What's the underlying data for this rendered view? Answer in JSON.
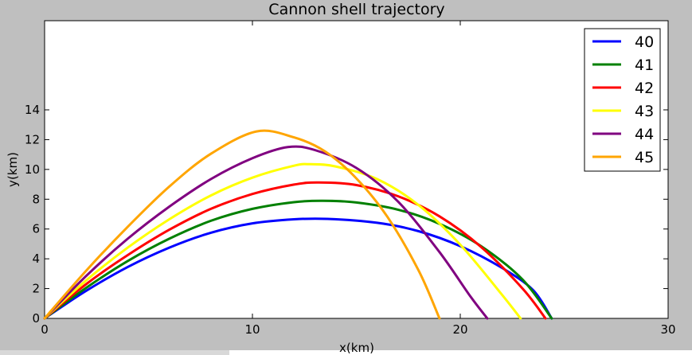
{
  "chart_data": {
    "type": "line",
    "title": "Cannon shell trajectory",
    "xlabel": "x(km)",
    "ylabel": "y(km)",
    "xlim": [
      0,
      30
    ],
    "ylim": [
      0,
      14
    ],
    "xticks": [
      0,
      10,
      20,
      30
    ],
    "yticks": [
      0,
      2,
      4,
      6,
      8,
      10,
      12,
      14
    ],
    "legend_position": "top-right",
    "grid": false,
    "series": [
      {
        "name": "40",
        "color": "#0000ff",
        "x": [
          0,
          2,
          4,
          6,
          8,
          10,
          12,
          13.6,
          16,
          18,
          20,
          22,
          23.5,
          24.4
        ],
        "y": [
          0,
          1.85,
          3.45,
          4.75,
          5.75,
          6.38,
          6.65,
          6.68,
          6.42,
          5.85,
          4.85,
          3.4,
          1.9,
          0
        ]
      },
      {
        "name": "41",
        "color": "#008000",
        "x": [
          0,
          2,
          4,
          6,
          8,
          10,
          12,
          13.4,
          15,
          17,
          19,
          21,
          23,
          24.4
        ],
        "y": [
          0,
          2.05,
          3.85,
          5.35,
          6.55,
          7.35,
          7.8,
          7.9,
          7.78,
          7.3,
          6.35,
          4.85,
          2.6,
          0
        ]
      },
      {
        "name": "42",
        "color": "#ff0000",
        "x": [
          0,
          2,
          4,
          6,
          8,
          10,
          12,
          13.2,
          15,
          17,
          19,
          21,
          23,
          24.1
        ],
        "y": [
          0,
          2.3,
          4.25,
          5.95,
          7.35,
          8.35,
          8.98,
          9.12,
          8.95,
          8.2,
          6.85,
          4.8,
          2.0,
          0
        ]
      },
      {
        "name": "43",
        "color": "#ffff00",
        "x": [
          0,
          2,
          4,
          6,
          8,
          10,
          12,
          12.8,
          14,
          16,
          18,
          20,
          22,
          22.9
        ],
        "y": [
          0,
          2.55,
          4.75,
          6.65,
          8.25,
          9.45,
          10.25,
          10.35,
          10.2,
          9.35,
          7.6,
          4.95,
          1.6,
          0
        ]
      },
      {
        "name": "44",
        "color": "#800080",
        "x": [
          0,
          2,
          4,
          6,
          8,
          10,
          11.7,
          13,
          15,
          17,
          19,
          20.5,
          21.3
        ],
        "y": [
          0,
          2.85,
          5.35,
          7.5,
          9.35,
          10.75,
          11.5,
          11.3,
          10.1,
          7.85,
          4.45,
          1.45,
          0
        ]
      },
      {
        "name": "45",
        "color": "#ffa500",
        "x": [
          0,
          2,
          4,
          6,
          8,
          10.2,
          12,
          13.5,
          15,
          16.5,
          18,
          19
        ],
        "y": [
          0,
          3.2,
          6.15,
          8.85,
          11.05,
          12.55,
          12.15,
          11.2,
          9.4,
          6.8,
          3.2,
          0
        ]
      }
    ]
  }
}
